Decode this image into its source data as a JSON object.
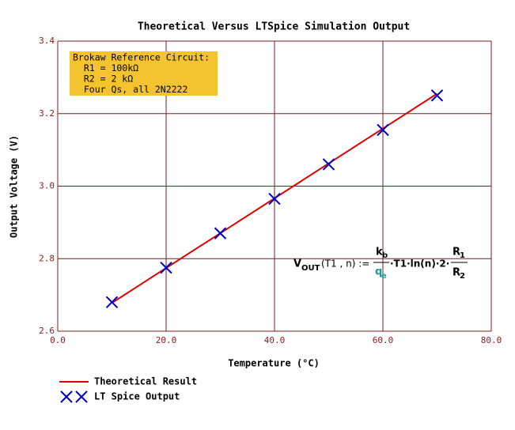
{
  "chart_data": {
    "type": "line",
    "title": "Theoretical Versus LTSpice Simulation Output",
    "x_label": "Temperature (°C)",
    "y_label": "Output Voltage (V)",
    "xlim": [
      0,
      80
    ],
    "xticks": [
      {
        "value": 0,
        "label": "0.0"
      },
      {
        "value": 20,
        "label": "20.0"
      },
      {
        "value": 40,
        "label": "40.0"
      },
      {
        "value": 60,
        "label": "60.0"
      },
      {
        "value": 80,
        "label": "80.0"
      }
    ],
    "ylim": [
      2.6,
      3.4
    ],
    "yticks": [
      2.6,
      2.8,
      {
        "value": 3,
        "label": "3.0"
      },
      3.2,
      3.4
    ],
    "grid": true,
    "legend": "bottom-left",
    "series": [
      {
        "name": "Theoretical Result",
        "mode": "line",
        "color": "#e00000",
        "x": [
          10,
          70
        ],
        "values": [
          2.678,
          3.255
        ]
      },
      {
        "name": "LT Spice Output",
        "mode": "markers",
        "color": "#0000cc",
        "x": [
          10,
          20,
          30,
          40,
          50,
          60,
          70
        ],
        "values": [
          2.68,
          2.775,
          2.87,
          2.965,
          3.06,
          3.155,
          3.25
        ]
      }
    ],
    "annotation_box": {
      "color": "#f4c430",
      "lines": [
        "Brokaw Reference Circuit:",
        "  R1 = 100kΩ",
        "  R2 = 2 kΩ",
        "  Four Qs, all 2N2222"
      ]
    },
    "formula": {
      "parts": [
        "V",
        "OUT",
        "(T1 , n) :=",
        "k",
        "b",
        "q",
        "e",
        "·T1·ln(n)·2·",
        "R",
        "1",
        "R",
        "2"
      ]
    }
  }
}
